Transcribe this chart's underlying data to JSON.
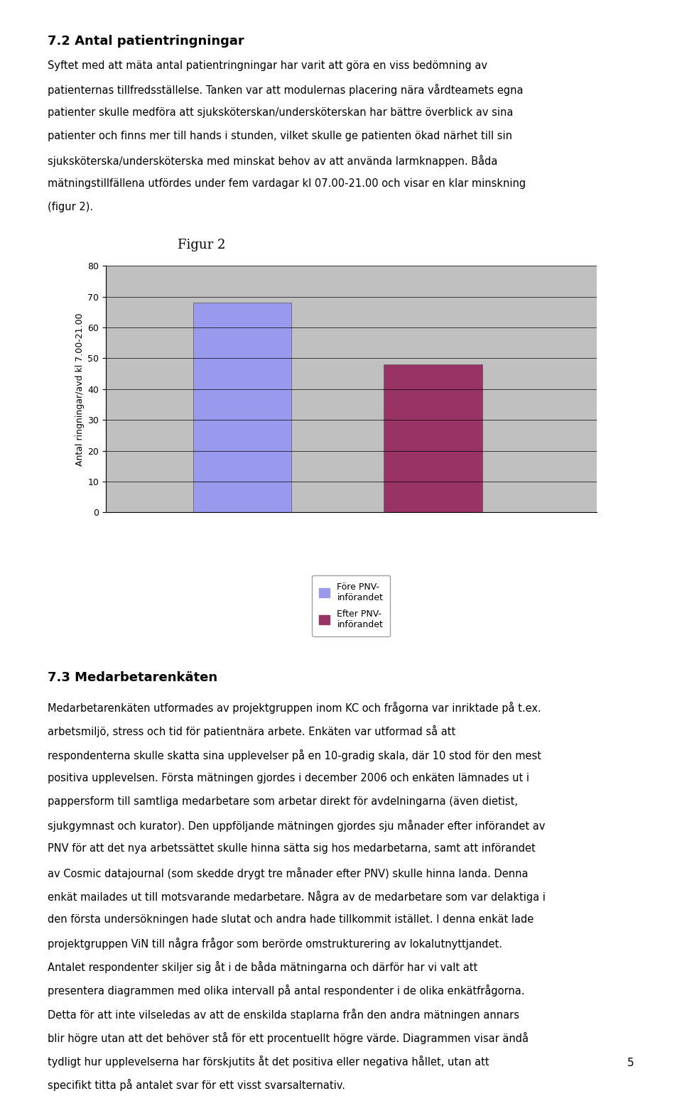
{
  "title": "Figur 2",
  "bar1_value": 68,
  "bar2_value": 48,
  "bar1_color": "#9999ee",
  "bar2_color": "#993366",
  "plot_bg_color": "#c0c0c0",
  "ylabel": "Antal ringningar/avd kl 7.00-21.00",
  "ylim": [
    0,
    80
  ],
  "yticks": [
    0,
    10,
    20,
    30,
    40,
    50,
    60,
    70,
    80
  ],
  "legend_label1": "Före PNV-\ninförandet",
  "legend_label2": "Efter PNV-\ninförandet",
  "heading": "7.2 Antal patientringningar",
  "para1": "Syftet med att mäta antal patientringningar har varit att göra en viss bedömning av patienternas tillfredsställelse. Tanken var att modulernas placering nära vårdteamets egna patienter skulle medföra att sjuksköterskan/undersköterskan har bättre överblick av sina patienter och finns mer till hands i stunden, vilket skulle ge patienten ökad närhet till sin sjuksköterska/undersköterska med minskat behov av att använda larmknappen. Båda mätningstillfällena utfördes under fem vardagar kl 07.00-21.00 och visar en klar minskning (figur 2).",
  "heading2": "7.3 Medarbetarenkäten",
  "para2": "Medarbetarenkäten utformades av projektgruppen inom KC och frågorna var inriktade på t.ex. arbetsmiljö, stress och tid för patientnära arbete. Enkäten var utformad så att respondenterna skulle skatta sina upplevelser på en 10-gradig skala, där 10 stod för den mest positiva upplevelsen. Första mätningen gjordes i december 2006 och enkäten lämnades ut i pappersform till samtliga medarbetare som arbetar direkt för avdelningarna (även dietist, sjukgymnast och kurator). Den uppföljande mätningen gjordes sju månader efter införandet av PNV för att det nya arbetssättet skulle hinna sätta sig hos medarbetarna, samt att införandet av Cosmic datajournal (som skedde drygt tre månader efter PNV) skulle hinna landa. Denna enkät mailades ut till motsvarande medarbetare. Några av de medarbetare som var delaktiga i den första undersökningen hade slutat och andra hade tillkommit istället. I denna enkät lade projektgruppen ViN till några frågor som berörde omstrukturering av lokalutnyttjandet. Antalet respondenter skiljer sig åt i de båda mätningarna och därför har vi valt att presentera diagrammen med olika intervall på antal respondenter i de olika enkätfrågorna. Detta för att inte vilseledas av att de enskilda staplarna från den andra mätningen annars blir högre utan att det behöver stå för ett procentuellt högre värde. Diagrammen visar ändå tydligt hur upplevelserna har förskjutits åt det positiva eller negativa hållet, utan att specifikt titta på antalet svar för ett visst svarsalternativ.",
  "page_number": "5",
  "title_fontsize": 13,
  "ylabel_fontsize": 9,
  "legend_fontsize": 9,
  "tick_fontsize": 9,
  "heading_fontsize": 13,
  "body_fontsize": 10.5,
  "heading2_fontsize": 13
}
